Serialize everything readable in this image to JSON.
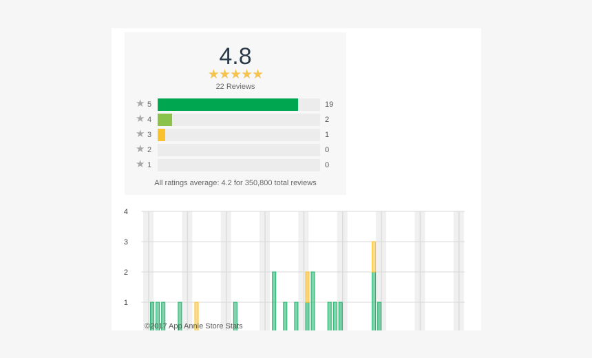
{
  "summary": {
    "average": "4.8",
    "stars": "★★★★★",
    "reviews_text": "22 Reviews",
    "star_glyph": "★",
    "all_ratings_text": "All ratings average: 4.2 for 350,800 total reviews"
  },
  "chart_data": [
    {
      "type": "bar",
      "orientation": "horizontal",
      "categories": [
        "5",
        "4",
        "3",
        "2",
        "1"
      ],
      "values": [
        19,
        2,
        1,
        0,
        0
      ],
      "max": 22,
      "colors": [
        "#00a650",
        "#8bc34a",
        "#fbc02d",
        "#ececec",
        "#ececec"
      ]
    },
    {
      "type": "bar",
      "stacked": true,
      "ylim": [
        0,
        4
      ],
      "yticks": [
        "1",
        "2",
        "3",
        "4"
      ],
      "x_days": 60,
      "series": [
        {
          "color": "#1db16a",
          "values": [
            {
              "day": 2,
              "value": 1
            },
            {
              "day": 3,
              "value": 1
            },
            {
              "day": 4,
              "value": 1
            },
            {
              "day": 7,
              "value": 1
            },
            {
              "day": 17,
              "value": 1
            },
            {
              "day": 24,
              "value": 2
            },
            {
              "day": 26,
              "value": 1
            },
            {
              "day": 28,
              "value": 1
            },
            {
              "day": 30,
              "value": 1
            },
            {
              "day": 31,
              "value": 2
            },
            {
              "day": 34,
              "value": 1
            },
            {
              "day": 35,
              "value": 1
            },
            {
              "day": 36,
              "value": 1
            },
            {
              "day": 42,
              "value": 2
            },
            {
              "day": 43,
              "value": 1
            }
          ]
        },
        {
          "color": "#fbc02d",
          "values": [
            {
              "day": 10,
              "value": 1
            },
            {
              "day": 30,
              "value": 1
            },
            {
              "day": 42,
              "value": 1
            }
          ]
        }
      ]
    }
  ],
  "copyright": "©2017 App Annie Store Stats"
}
